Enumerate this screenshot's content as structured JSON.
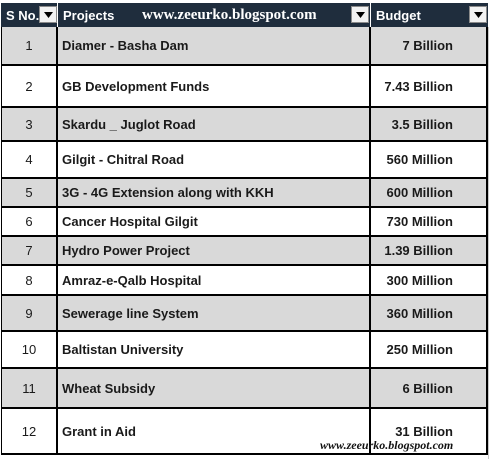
{
  "headers": {
    "sno": "S No.",
    "projects": "Projects",
    "budget": "Budget",
    "site": "www.zeeurko.blogspot.com"
  },
  "rows": [
    {
      "sno": "1",
      "project": "Diamer - Basha Dam",
      "budget": "7 Billion"
    },
    {
      "sno": "2",
      "project": "GB Development Funds",
      "budget": "7.43 Billion"
    },
    {
      "sno": "3",
      "project": "Skardu _ Juglot Road",
      "budget": "3.5 Billion"
    },
    {
      "sno": "4",
      "project": "Gilgit - Chitral Road",
      "budget": "560 Million"
    },
    {
      "sno": "5",
      "project": "3G - 4G Extension along with KKH",
      "budget": "600 Million"
    },
    {
      "sno": "6",
      "project": "Cancer Hospital Gilgit",
      "budget": "730 Million"
    },
    {
      "sno": "7",
      "project": "Hydro Power Project",
      "budget": "1.39 Billion"
    },
    {
      "sno": "8",
      "project": "Amraz-e-Qalb Hospital",
      "budget": "300 Million"
    },
    {
      "sno": "9",
      "project": "Sewerage line System",
      "budget": "360 Million"
    },
    {
      "sno": "10",
      "project": "Baltistan University",
      "budget": "250 Million"
    },
    {
      "sno": "11",
      "project": "Wheat Subsidy",
      "budget": "6 Billion"
    },
    {
      "sno": "12",
      "project": "Grant in Aid",
      "budget": "31 Billion"
    }
  ],
  "watermark": "www.zeeurko.blogspot.com",
  "icons": {
    "filter": "filter-dropdown-icon"
  },
  "colors": {
    "header_bg": "#1f2d3d",
    "header_text": "#ffffff",
    "shaded_row": "#d9d9d9"
  }
}
